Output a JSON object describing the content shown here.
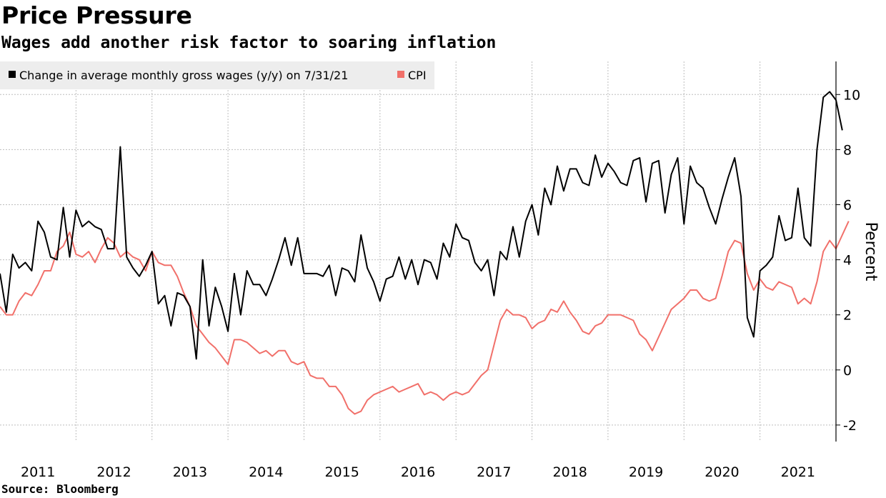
{
  "header": {
    "title": "Price Pressure",
    "subtitle": "Wages add another risk factor to soaring inflation"
  },
  "footer": {
    "source": "Source: Bloomberg"
  },
  "chart_data": {
    "type": "line",
    "ylabel": "Percent",
    "ylim": [
      -2.6,
      11.2
    ],
    "xlim": [
      2010.5,
      2021.5
    ],
    "y_ticks": [
      -2,
      0,
      2,
      4,
      6,
      8,
      10
    ],
    "x_ticks": [
      2011,
      2012,
      2013,
      2014,
      2015,
      2016,
      2017,
      2018,
      2019,
      2020,
      2021
    ],
    "grid": true,
    "legend_position": "top-left",
    "series": [
      {
        "name": "Change in average monthly gross wages (y/y) on 7/31/21",
        "color": "#000000",
        "points": [
          [
            2010.5,
            3.5
          ],
          [
            2010.583,
            2.1
          ],
          [
            2010.667,
            4.2
          ],
          [
            2010.75,
            3.7
          ],
          [
            2010.833,
            3.9
          ],
          [
            2010.917,
            3.6
          ],
          [
            2011.0,
            5.4
          ],
          [
            2011.083,
            5.0
          ],
          [
            2011.167,
            4.1
          ],
          [
            2011.25,
            4.0
          ],
          [
            2011.333,
            5.9
          ],
          [
            2011.417,
            4.1
          ],
          [
            2011.5,
            5.8
          ],
          [
            2011.583,
            5.2
          ],
          [
            2011.667,
            5.4
          ],
          [
            2011.75,
            5.2
          ],
          [
            2011.833,
            5.1
          ],
          [
            2011.917,
            4.4
          ],
          [
            2012.0,
            4.4
          ],
          [
            2012.083,
            8.1
          ],
          [
            2012.167,
            4.1
          ],
          [
            2012.25,
            3.7
          ],
          [
            2012.333,
            3.4
          ],
          [
            2012.417,
            3.8
          ],
          [
            2012.5,
            4.3
          ],
          [
            2012.583,
            2.4
          ],
          [
            2012.667,
            2.7
          ],
          [
            2012.75,
            1.6
          ],
          [
            2012.833,
            2.8
          ],
          [
            2012.917,
            2.7
          ],
          [
            2013.0,
            2.3
          ],
          [
            2013.083,
            0.4
          ],
          [
            2013.167,
            4.0
          ],
          [
            2013.25,
            1.6
          ],
          [
            2013.333,
            3.0
          ],
          [
            2013.417,
            2.3
          ],
          [
            2013.5,
            1.4
          ],
          [
            2013.583,
            3.5
          ],
          [
            2013.667,
            2.0
          ],
          [
            2013.75,
            3.6
          ],
          [
            2013.833,
            3.1
          ],
          [
            2013.917,
            3.1
          ],
          [
            2014.0,
            2.7
          ],
          [
            2014.083,
            3.3
          ],
          [
            2014.167,
            4.0
          ],
          [
            2014.25,
            4.8
          ],
          [
            2014.333,
            3.8
          ],
          [
            2014.417,
            4.8
          ],
          [
            2014.5,
            3.5
          ],
          [
            2014.583,
            3.5
          ],
          [
            2014.667,
            3.5
          ],
          [
            2014.75,
            3.4
          ],
          [
            2014.833,
            3.8
          ],
          [
            2014.917,
            2.7
          ],
          [
            2015.0,
            3.7
          ],
          [
            2015.083,
            3.6
          ],
          [
            2015.167,
            3.2
          ],
          [
            2015.25,
            4.9
          ],
          [
            2015.333,
            3.7
          ],
          [
            2015.417,
            3.2
          ],
          [
            2015.5,
            2.5
          ],
          [
            2015.583,
            3.3
          ],
          [
            2015.667,
            3.4
          ],
          [
            2015.75,
            4.1
          ],
          [
            2015.833,
            3.3
          ],
          [
            2015.917,
            4.0
          ],
          [
            2016.0,
            3.1
          ],
          [
            2016.083,
            4.0
          ],
          [
            2016.167,
            3.9
          ],
          [
            2016.25,
            3.3
          ],
          [
            2016.333,
            4.6
          ],
          [
            2016.417,
            4.1
          ],
          [
            2016.5,
            5.3
          ],
          [
            2016.583,
            4.8
          ],
          [
            2016.667,
            4.7
          ],
          [
            2016.75,
            3.9
          ],
          [
            2016.833,
            3.6
          ],
          [
            2016.917,
            4.0
          ],
          [
            2017.0,
            2.7
          ],
          [
            2017.083,
            4.3
          ],
          [
            2017.167,
            4.0
          ],
          [
            2017.25,
            5.2
          ],
          [
            2017.333,
            4.1
          ],
          [
            2017.417,
            5.4
          ],
          [
            2017.5,
            6.0
          ],
          [
            2017.583,
            4.9
          ],
          [
            2017.667,
            6.6
          ],
          [
            2017.75,
            6.0
          ],
          [
            2017.833,
            7.4
          ],
          [
            2017.917,
            6.5
          ],
          [
            2018.0,
            7.3
          ],
          [
            2018.083,
            7.3
          ],
          [
            2018.167,
            6.8
          ],
          [
            2018.25,
            6.7
          ],
          [
            2018.333,
            7.8
          ],
          [
            2018.417,
            7.0
          ],
          [
            2018.5,
            7.5
          ],
          [
            2018.583,
            7.2
          ],
          [
            2018.667,
            6.8
          ],
          [
            2018.75,
            6.7
          ],
          [
            2018.833,
            7.6
          ],
          [
            2018.917,
            7.7
          ],
          [
            2019.0,
            6.1
          ],
          [
            2019.083,
            7.5
          ],
          [
            2019.167,
            7.6
          ],
          [
            2019.25,
            5.7
          ],
          [
            2019.333,
            7.1
          ],
          [
            2019.417,
            7.7
          ],
          [
            2019.5,
            5.3
          ],
          [
            2019.583,
            7.4
          ],
          [
            2019.667,
            6.8
          ],
          [
            2019.75,
            6.6
          ],
          [
            2019.833,
            5.9
          ],
          [
            2019.917,
            5.3
          ],
          [
            2020.0,
            6.2
          ],
          [
            2020.083,
            7.0
          ],
          [
            2020.167,
            7.7
          ],
          [
            2020.25,
            6.3
          ],
          [
            2020.333,
            1.9
          ],
          [
            2020.417,
            1.2
          ],
          [
            2020.5,
            3.6
          ],
          [
            2020.583,
            3.8
          ],
          [
            2020.667,
            4.1
          ],
          [
            2020.75,
            5.6
          ],
          [
            2020.833,
            4.7
          ],
          [
            2020.917,
            4.8
          ],
          [
            2021.0,
            6.6
          ],
          [
            2021.083,
            4.8
          ],
          [
            2021.167,
            4.5
          ],
          [
            2021.25,
            8.0
          ],
          [
            2021.333,
            9.9
          ],
          [
            2021.417,
            10.1
          ],
          [
            2021.5,
            9.8
          ],
          [
            2021.583,
            8.7
          ]
        ]
      },
      {
        "name": "CPI",
        "color": "#f1706a",
        "points": [
          [
            2010.5,
            2.3
          ],
          [
            2010.583,
            2.0
          ],
          [
            2010.667,
            2.0
          ],
          [
            2010.75,
            2.5
          ],
          [
            2010.833,
            2.8
          ],
          [
            2010.917,
            2.7
          ],
          [
            2011.0,
            3.1
          ],
          [
            2011.083,
            3.6
          ],
          [
            2011.167,
            3.6
          ],
          [
            2011.25,
            4.3
          ],
          [
            2011.333,
            4.5
          ],
          [
            2011.417,
            5.0
          ],
          [
            2011.5,
            4.2
          ],
          [
            2011.583,
            4.1
          ],
          [
            2011.667,
            4.3
          ],
          [
            2011.75,
            3.9
          ],
          [
            2011.833,
            4.4
          ],
          [
            2011.917,
            4.8
          ],
          [
            2012.0,
            4.6
          ],
          [
            2012.083,
            4.1
          ],
          [
            2012.167,
            4.3
          ],
          [
            2012.25,
            4.1
          ],
          [
            2012.333,
            4.0
          ],
          [
            2012.417,
            3.6
          ],
          [
            2012.5,
            4.3
          ],
          [
            2012.583,
            3.9
          ],
          [
            2012.667,
            3.8
          ],
          [
            2012.75,
            3.8
          ],
          [
            2012.833,
            3.4
          ],
          [
            2012.917,
            2.8
          ],
          [
            2013.0,
            2.3
          ],
          [
            2013.083,
            1.6
          ],
          [
            2013.167,
            1.3
          ],
          [
            2013.25,
            1.0
          ],
          [
            2013.333,
            0.8
          ],
          [
            2013.417,
            0.5
          ],
          [
            2013.5,
            0.2
          ],
          [
            2013.583,
            1.1
          ],
          [
            2013.667,
            1.1
          ],
          [
            2013.75,
            1.0
          ],
          [
            2013.833,
            0.8
          ],
          [
            2013.917,
            0.6
          ],
          [
            2014.0,
            0.7
          ],
          [
            2014.083,
            0.5
          ],
          [
            2014.167,
            0.7
          ],
          [
            2014.25,
            0.7
          ],
          [
            2014.333,
            0.3
          ],
          [
            2014.417,
            0.2
          ],
          [
            2014.5,
            0.3
          ],
          [
            2014.583,
            -0.2
          ],
          [
            2014.667,
            -0.3
          ],
          [
            2014.75,
            -0.3
          ],
          [
            2014.833,
            -0.6
          ],
          [
            2014.917,
            -0.6
          ],
          [
            2015.0,
            -0.9
          ],
          [
            2015.083,
            -1.4
          ],
          [
            2015.167,
            -1.6
          ],
          [
            2015.25,
            -1.5
          ],
          [
            2015.333,
            -1.1
          ],
          [
            2015.417,
            -0.9
          ],
          [
            2015.5,
            -0.8
          ],
          [
            2015.583,
            -0.7
          ],
          [
            2015.667,
            -0.6
          ],
          [
            2015.75,
            -0.8
          ],
          [
            2015.833,
            -0.7
          ],
          [
            2015.917,
            -0.6
          ],
          [
            2016.0,
            -0.5
          ],
          [
            2016.083,
            -0.9
          ],
          [
            2016.167,
            -0.8
          ],
          [
            2016.25,
            -0.9
          ],
          [
            2016.333,
            -1.1
          ],
          [
            2016.417,
            -0.9
          ],
          [
            2016.5,
            -0.8
          ],
          [
            2016.583,
            -0.9
          ],
          [
            2016.667,
            -0.8
          ],
          [
            2016.75,
            -0.5
          ],
          [
            2016.833,
            -0.2
          ],
          [
            2016.917,
            0.0
          ],
          [
            2017.0,
            0.9
          ],
          [
            2017.083,
            1.8
          ],
          [
            2017.167,
            2.2
          ],
          [
            2017.25,
            2.0
          ],
          [
            2017.333,
            2.0
          ],
          [
            2017.417,
            1.9
          ],
          [
            2017.5,
            1.5
          ],
          [
            2017.583,
            1.7
          ],
          [
            2017.667,
            1.8
          ],
          [
            2017.75,
            2.2
          ],
          [
            2017.833,
            2.1
          ],
          [
            2017.917,
            2.5
          ],
          [
            2018.0,
            2.1
          ],
          [
            2018.083,
            1.8
          ],
          [
            2018.167,
            1.4
          ],
          [
            2018.25,
            1.3
          ],
          [
            2018.333,
            1.6
          ],
          [
            2018.417,
            1.7
          ],
          [
            2018.5,
            2.0
          ],
          [
            2018.583,
            2.0
          ],
          [
            2018.667,
            2.0
          ],
          [
            2018.75,
            1.9
          ],
          [
            2018.833,
            1.8
          ],
          [
            2018.917,
            1.3
          ],
          [
            2019.0,
            1.1
          ],
          [
            2019.083,
            0.7
          ],
          [
            2019.167,
            1.2
          ],
          [
            2019.25,
            1.7
          ],
          [
            2019.333,
            2.2
          ],
          [
            2019.417,
            2.4
          ],
          [
            2019.5,
            2.6
          ],
          [
            2019.583,
            2.9
          ],
          [
            2019.667,
            2.9
          ],
          [
            2019.75,
            2.6
          ],
          [
            2019.833,
            2.5
          ],
          [
            2019.917,
            2.6
          ],
          [
            2020.0,
            3.4
          ],
          [
            2020.083,
            4.3
          ],
          [
            2020.167,
            4.7
          ],
          [
            2020.25,
            4.6
          ],
          [
            2020.333,
            3.5
          ],
          [
            2020.417,
            2.9
          ],
          [
            2020.5,
            3.3
          ],
          [
            2020.583,
            3.0
          ],
          [
            2020.667,
            2.9
          ],
          [
            2020.75,
            3.2
          ],
          [
            2020.833,
            3.1
          ],
          [
            2020.917,
            3.0
          ],
          [
            2021.0,
            2.4
          ],
          [
            2021.083,
            2.6
          ],
          [
            2021.167,
            2.4
          ],
          [
            2021.25,
            3.2
          ],
          [
            2021.333,
            4.3
          ],
          [
            2021.417,
            4.7
          ],
          [
            2021.5,
            4.4
          ],
          [
            2021.583,
            4.9
          ],
          [
            2021.667,
            5.4
          ]
        ]
      }
    ]
  }
}
